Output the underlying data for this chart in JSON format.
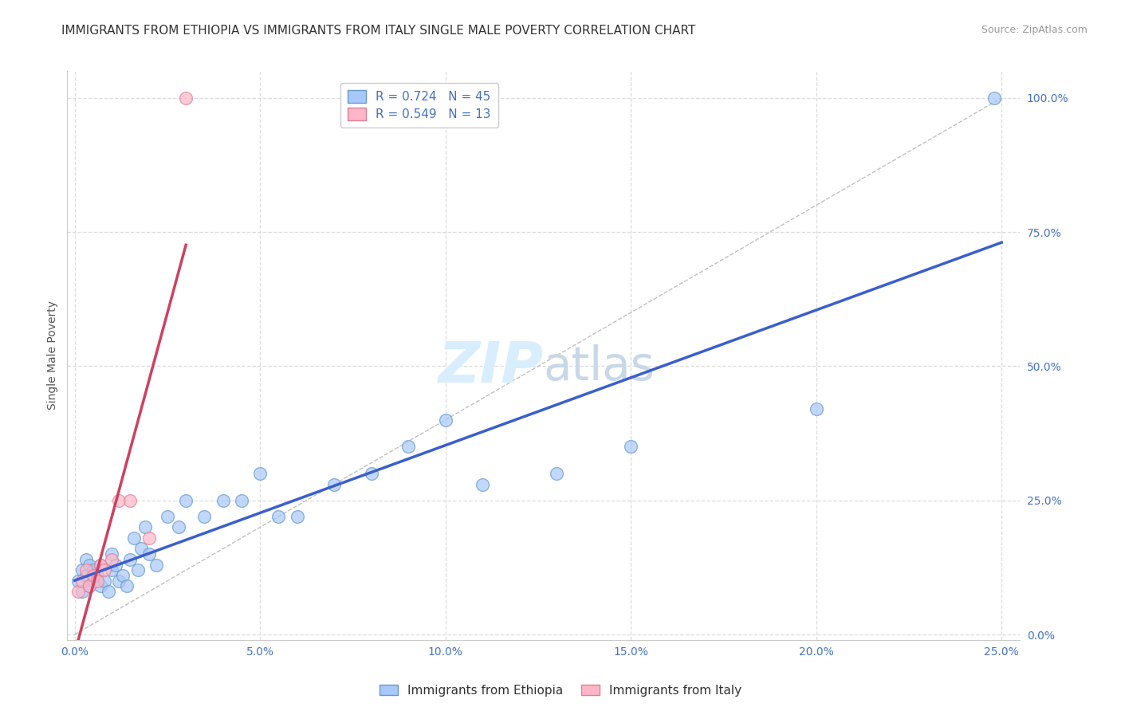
{
  "title": "IMMIGRANTS FROM ETHIOPIA VS IMMIGRANTS FROM ITALY SINGLE MALE POVERTY CORRELATION CHART",
  "source": "Source: ZipAtlas.com",
  "ylabel": "Single Male Poverty",
  "x_tick_labels": [
    "0.0%",
    "5.0%",
    "10.0%",
    "15.0%",
    "20.0%",
    "25.0%"
  ],
  "x_tick_values": [
    0.0,
    0.05,
    0.1,
    0.15,
    0.2,
    0.25
  ],
  "y_tick_labels": [
    "0.0%",
    "25.0%",
    "50.0%",
    "75.0%",
    "100.0%"
  ],
  "y_tick_values": [
    0.0,
    0.25,
    0.5,
    0.75,
    1.0
  ],
  "xlim": [
    -0.002,
    0.255
  ],
  "ylim": [
    -0.01,
    1.05
  ],
  "ethiopia_color": "#A8C8F8",
  "italy_color": "#FFB6C8",
  "ethiopia_edge": "#6699CC",
  "italy_edge": "#E08090",
  "regression_ethiopia_color": "#3A5FCD",
  "regression_italy_color": "#D04060",
  "ethiopia_R": 0.724,
  "ethiopia_N": 45,
  "italy_R": 0.549,
  "italy_N": 13,
  "legend_label_ethiopia": "Immigrants from Ethiopia",
  "legend_label_italy": "Immigrants from Italy",
  "ethiopia_x": [
    0.001,
    0.002,
    0.002,
    0.003,
    0.003,
    0.004,
    0.004,
    0.005,
    0.005,
    0.006,
    0.007,
    0.007,
    0.008,
    0.009,
    0.01,
    0.01,
    0.011,
    0.012,
    0.013,
    0.014,
    0.015,
    0.016,
    0.017,
    0.018,
    0.019,
    0.02,
    0.022,
    0.025,
    0.028,
    0.03,
    0.035,
    0.04,
    0.045,
    0.05,
    0.055,
    0.06,
    0.07,
    0.08,
    0.09,
    0.1,
    0.11,
    0.13,
    0.15,
    0.2,
    0.248
  ],
  "ethiopia_y": [
    0.1,
    0.12,
    0.08,
    0.11,
    0.14,
    0.09,
    0.13,
    0.1,
    0.12,
    0.11,
    0.09,
    0.13,
    0.1,
    0.08,
    0.12,
    0.15,
    0.13,
    0.1,
    0.11,
    0.09,
    0.14,
    0.18,
    0.12,
    0.16,
    0.2,
    0.15,
    0.13,
    0.22,
    0.2,
    0.25,
    0.22,
    0.25,
    0.25,
    0.3,
    0.22,
    0.22,
    0.28,
    0.3,
    0.35,
    0.4,
    0.28,
    0.3,
    0.35,
    0.42,
    1.0
  ],
  "italy_x": [
    0.001,
    0.002,
    0.003,
    0.004,
    0.005,
    0.006,
    0.007,
    0.008,
    0.01,
    0.012,
    0.015,
    0.02,
    0.03
  ],
  "italy_y": [
    0.08,
    0.1,
    0.12,
    0.09,
    0.11,
    0.1,
    0.13,
    0.12,
    0.14,
    0.25,
    0.25,
    0.18,
    1.0
  ],
  "background_color": "#FFFFFF",
  "grid_color": "#DDDDDD",
  "title_fontsize": 11,
  "axis_label_fontsize": 10,
  "tick_fontsize": 10,
  "legend_fontsize": 11,
  "watermark_color": "#D8EEFF",
  "watermark_fontsize": 52
}
